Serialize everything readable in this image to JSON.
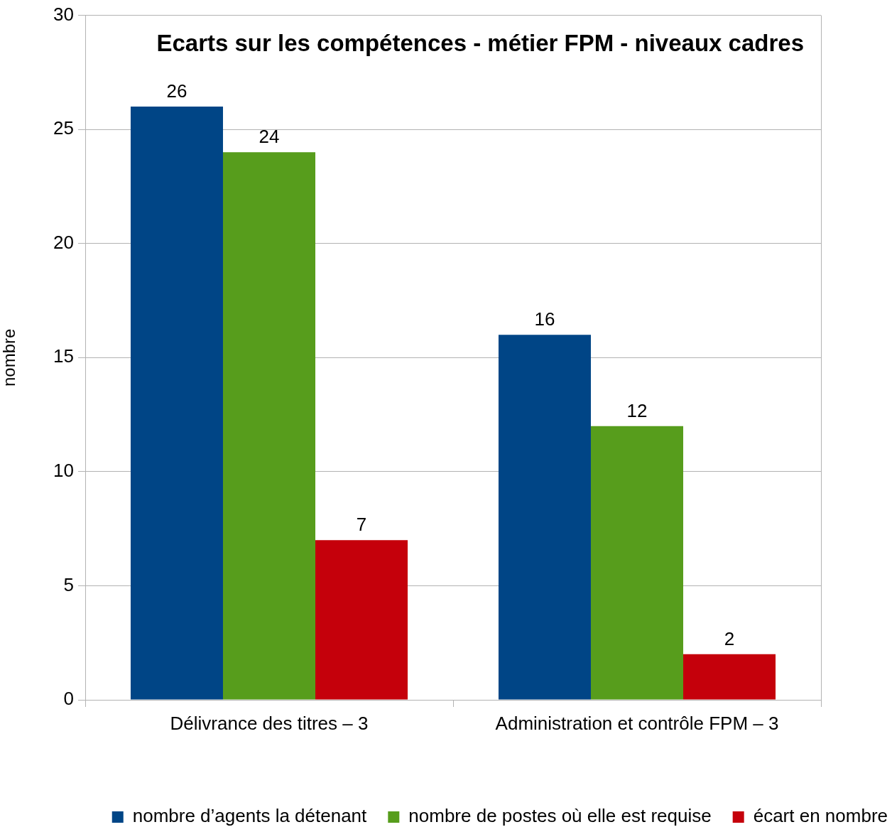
{
  "chart_data": {
    "type": "bar",
    "title": "Ecarts sur les compétences - métier FPM - niveaux cadres",
    "ylabel": "nombre",
    "categories": [
      "Délivrance des titres – 3",
      "Administration et contrôle FPM – 3"
    ],
    "series": [
      {
        "name": "nombre d’agents la détenant",
        "color": "#004586",
        "values": [
          26,
          16
        ]
      },
      {
        "name": "nombre de postes où elle est requise",
        "color": "#579d1c",
        "values": [
          24,
          12
        ]
      },
      {
        "name": "écart en nombre",
        "color": "#c5000b",
        "values": [
          7,
          2
        ]
      }
    ],
    "ylim": [
      0,
      30
    ],
    "yticks": [
      0,
      5,
      10,
      15,
      20,
      25,
      30
    ],
    "grid": "y",
    "legend": "bottom",
    "data_labels": true
  }
}
